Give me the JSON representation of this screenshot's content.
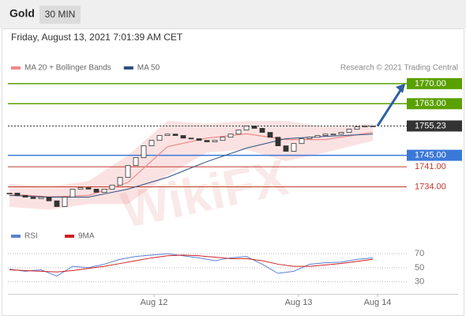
{
  "header": {
    "symbol": "Gold",
    "interval": "30 MIN",
    "timestamp": "Friday, August 13, 2021 7:01:39 AM CET"
  },
  "watermark": "WikiFX",
  "chart_data": [
    {
      "type": "candlestick",
      "source": "Research © 2021 Trading Central",
      "candle_color": "#333333",
      "values": [
        1731.8,
        1731.0,
        1730.4,
        1729.9,
        1730.4,
        1729.1,
        1727.1,
        1730.4,
        1733.2,
        1733.7,
        1733.2,
        1732.1,
        1733.2,
        1734.6,
        1737.3,
        1741.4,
        1744.2,
        1748.3,
        1750.2,
        1751.9,
        1752.4,
        1751.9,
        1751.0,
        1750.8,
        1750.2,
        1749.7,
        1750.2,
        1751.3,
        1752.4,
        1753.8,
        1755.2,
        1754.4,
        1753.0,
        1751.3,
        1748.3,
        1746.4,
        1749.1,
        1750.8,
        1751.3,
        1751.9,
        1752.4,
        1752.4,
        1753.0,
        1754.1,
        1754.9,
        1755.2,
        1755.23
      ],
      "series": [
        {
          "name": "MA 20 + Bollinger Bands",
          "color": "#f08a8a",
          "x": [
            0,
            5,
            10,
            15,
            20,
            25,
            30,
            35,
            40,
            46
          ],
          "values": [
            1731.5,
            1730.5,
            1731.0,
            1735.5,
            1748.0,
            1751.0,
            1752.5,
            1750.5,
            1750.5,
            1753.0
          ],
          "upper": [
            1735,
            1734,
            1736,
            1745,
            1757,
            1756,
            1757,
            1757,
            1755,
            1756
          ],
          "lower": [
            1727,
            1726,
            1728,
            1728,
            1738,
            1746,
            1747,
            1743,
            1746,
            1750
          ]
        },
        {
          "name": "MA 50",
          "color": "#2f4f80",
          "x": [
            0,
            5,
            10,
            15,
            20,
            25,
            30,
            35,
            40,
            46
          ],
          "values": [
            1731.0,
            1730.4,
            1730.4,
            1733.2,
            1737.3,
            1742.8,
            1747.5,
            1750.8,
            1751.6,
            1752.4
          ]
        }
      ],
      "levels": [
        {
          "value": 1770,
          "label": "1770.00",
          "color": "#5aa000",
          "boxed": true
        },
        {
          "value": 1763,
          "label": "1763.00",
          "color": "#5aa000",
          "boxed": true
        },
        {
          "value": 1755.23,
          "label": "1755.23",
          "color": "#333333",
          "boxed": true,
          "dashed": true
        },
        {
          "value": 1745,
          "label": "1745.00",
          "color": "#3b78d8",
          "boxed": true
        },
        {
          "value": 1741,
          "label": "1741.00",
          "color": "#c0392b",
          "boxed": false
        },
        {
          "value": 1734,
          "label": "1734.00",
          "color": "#c0392b",
          "boxed": false
        }
      ],
      "arrow_color": "#2f5f9f",
      "xlim": [
        0,
        50
      ],
      "ylim": [
        1722,
        1773
      ]
    },
    {
      "type": "line",
      "series": [
        {
          "name": "RSI",
          "color": "#5b7fd1",
          "x": [
            0,
            2,
            4,
            6,
            8,
            10,
            12,
            14,
            16,
            18,
            20,
            22,
            24,
            26,
            28,
            30,
            32,
            34,
            36,
            38,
            40,
            42,
            44,
            46
          ],
          "values": [
            48,
            45,
            47,
            38,
            52,
            50,
            55,
            62,
            66,
            68,
            70,
            67,
            64,
            60,
            64,
            66,
            55,
            42,
            45,
            55,
            57,
            58,
            62,
            64
          ]
        },
        {
          "name": "9MA",
          "color": "#cc2222",
          "x": [
            0,
            2,
            4,
            6,
            8,
            10,
            12,
            14,
            16,
            18,
            20,
            22,
            24,
            26,
            28,
            30,
            32,
            34,
            36,
            38,
            40,
            42,
            44,
            46
          ],
          "values": [
            47,
            46,
            45,
            44,
            46,
            49,
            52,
            56,
            60,
            64,
            67,
            68,
            67,
            65,
            63,
            63,
            60,
            55,
            52,
            52,
            54,
            56,
            59,
            62
          ]
        }
      ],
      "xlim": [
        0,
        50
      ],
      "ylim": [
        15,
        105
      ],
      "yticks": [
        30,
        50,
        70
      ],
      "xticks": [
        {
          "value": 18.3,
          "label": "Aug 12"
        },
        {
          "value": 36.6,
          "label": "Aug 13"
        },
        {
          "value": 46.6,
          "label": "Aug 14"
        }
      ]
    }
  ]
}
